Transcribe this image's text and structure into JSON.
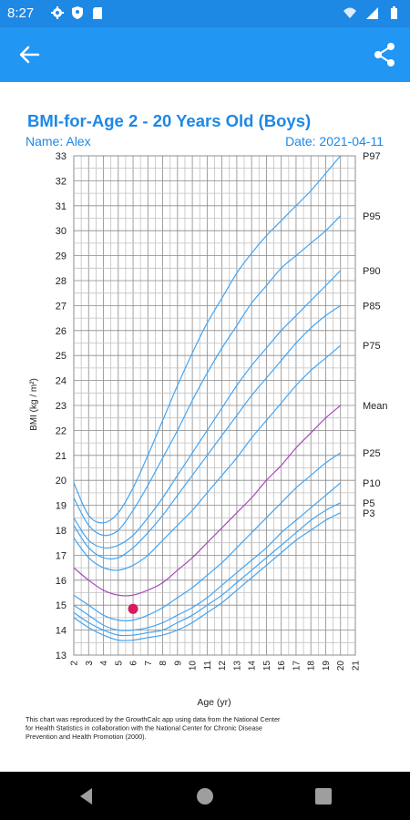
{
  "status_bar": {
    "time": "8:27",
    "icons_left": [
      "gear-icon",
      "shield-icon",
      "sd-card-icon"
    ],
    "icons_right": [
      "wifi-icon",
      "signal-icon",
      "battery-icon"
    ]
  },
  "app_bar": {
    "back_icon": "arrow-back-icon",
    "share_icon": "share-icon",
    "color": "#2196f3"
  },
  "header": {
    "title": "BMI-for-Age 2 - 20 Years Old (Boys)",
    "name": "Name: Alex",
    "date": "Date: 2021-04-11",
    "color": "#1e88e5"
  },
  "chart_data": {
    "type": "line",
    "title": "BMI-for-Age 2 - 20 Years Old (Boys)",
    "xlabel": "Age (yr)",
    "ylabel": "BMI (kg / m²)",
    "xlim": [
      2,
      21
    ],
    "ylim": [
      13,
      33
    ],
    "x_ticks": [
      "2",
      "3",
      "4",
      "5",
      "6",
      "7",
      "8",
      "9",
      "10",
      "11",
      "12",
      "13",
      "14",
      "15",
      "16",
      "17",
      "18",
      "19",
      "20",
      "21"
    ],
    "y_ticks": [
      "13",
      "14",
      "15",
      "16",
      "17",
      "18",
      "19",
      "20",
      "21",
      "22",
      "23",
      "24",
      "25",
      "26",
      "27",
      "28",
      "29",
      "30",
      "31",
      "32",
      "33"
    ],
    "grid": true,
    "x": [
      2,
      3,
      4,
      5,
      6,
      7,
      8,
      9,
      10,
      11,
      12,
      13,
      14,
      15,
      16,
      17,
      18,
      19,
      20
    ],
    "series": [
      {
        "name": "P97",
        "color": "#42a5f5",
        "values": [
          19.9,
          18.6,
          18.3,
          18.7,
          19.7,
          21.0,
          22.4,
          23.8,
          25.1,
          26.3,
          27.3,
          28.3,
          29.1,
          29.8,
          30.4,
          31.0,
          31.6,
          32.3,
          33.0
        ]
      },
      {
        "name": "P95",
        "color": "#42a5f5",
        "values": [
          19.3,
          18.2,
          17.8,
          18.0,
          18.8,
          19.8,
          20.9,
          22.0,
          23.2,
          24.3,
          25.3,
          26.2,
          27.1,
          27.8,
          28.5,
          29.0,
          29.5,
          30.0,
          30.6
        ]
      },
      {
        "name": "P90",
        "color": "#42a5f5",
        "values": [
          18.5,
          17.6,
          17.3,
          17.4,
          17.8,
          18.5,
          19.3,
          20.2,
          21.1,
          22.0,
          22.9,
          23.8,
          24.6,
          25.3,
          26.0,
          26.6,
          27.2,
          27.8,
          28.4
        ]
      },
      {
        "name": "P85",
        "color": "#42a5f5",
        "values": [
          18.2,
          17.3,
          16.9,
          16.9,
          17.3,
          17.9,
          18.6,
          19.4,
          20.2,
          21.0,
          21.8,
          22.6,
          23.4,
          24.1,
          24.8,
          25.5,
          26.1,
          26.6,
          27.0
        ]
      },
      {
        "name": "P75",
        "color": "#42a5f5",
        "values": [
          17.7,
          16.9,
          16.5,
          16.4,
          16.6,
          17.0,
          17.6,
          18.2,
          18.8,
          19.5,
          20.2,
          20.9,
          21.7,
          22.4,
          23.1,
          23.8,
          24.4,
          24.9,
          25.4
        ]
      },
      {
        "name": "Mean",
        "color": "#ab47bc",
        "values": [
          16.5,
          16.0,
          15.6,
          15.4,
          15.4,
          15.6,
          15.9,
          16.4,
          16.9,
          17.5,
          18.1,
          18.7,
          19.3,
          20.0,
          20.6,
          21.3,
          21.9,
          22.5,
          23.0
        ]
      },
      {
        "name": "P25",
        "color": "#42a5f5",
        "values": [
          15.4,
          15.0,
          14.6,
          14.4,
          14.4,
          14.6,
          14.9,
          15.3,
          15.7,
          16.2,
          16.7,
          17.3,
          17.9,
          18.5,
          19.1,
          19.7,
          20.2,
          20.7,
          21.1
        ]
      },
      {
        "name": "P10",
        "color": "#42a5f5",
        "values": [
          15.0,
          14.6,
          14.2,
          14.0,
          14.0,
          14.1,
          14.3,
          14.6,
          14.9,
          15.3,
          15.8,
          16.3,
          16.8,
          17.3,
          17.9,
          18.4,
          18.9,
          19.4,
          19.9
        ]
      },
      {
        "name": "P5",
        "color": "#42a5f5",
        "values": [
          14.7,
          14.3,
          14.0,
          13.8,
          13.8,
          13.9,
          14.0,
          14.3,
          14.6,
          15.0,
          15.4,
          15.9,
          16.4,
          16.9,
          17.4,
          17.9,
          18.4,
          18.8,
          19.1
        ]
      },
      {
        "name": "P3",
        "color": "#42a5f5",
        "values": [
          14.5,
          14.1,
          13.8,
          13.6,
          13.6,
          13.7,
          13.8,
          14.0,
          14.3,
          14.7,
          15.1,
          15.6,
          16.1,
          16.6,
          17.1,
          17.6,
          18.0,
          18.4,
          18.7
        ]
      }
    ],
    "points": [
      {
        "x": 6.0,
        "y": 14.85,
        "color": "#d81b60"
      }
    ],
    "line_labels_placement": "right"
  },
  "footnote": "This chart was reproduced by the GrowthCalc app using data from the National Center for Health Statistics in collaboration with the National Center for Chronic Disease Prevention and Health Promotion (2000).",
  "nav_bar": {
    "back_icon": "nav-back-icon",
    "home_icon": "nav-home-icon",
    "recents_icon": "nav-recents-icon"
  }
}
